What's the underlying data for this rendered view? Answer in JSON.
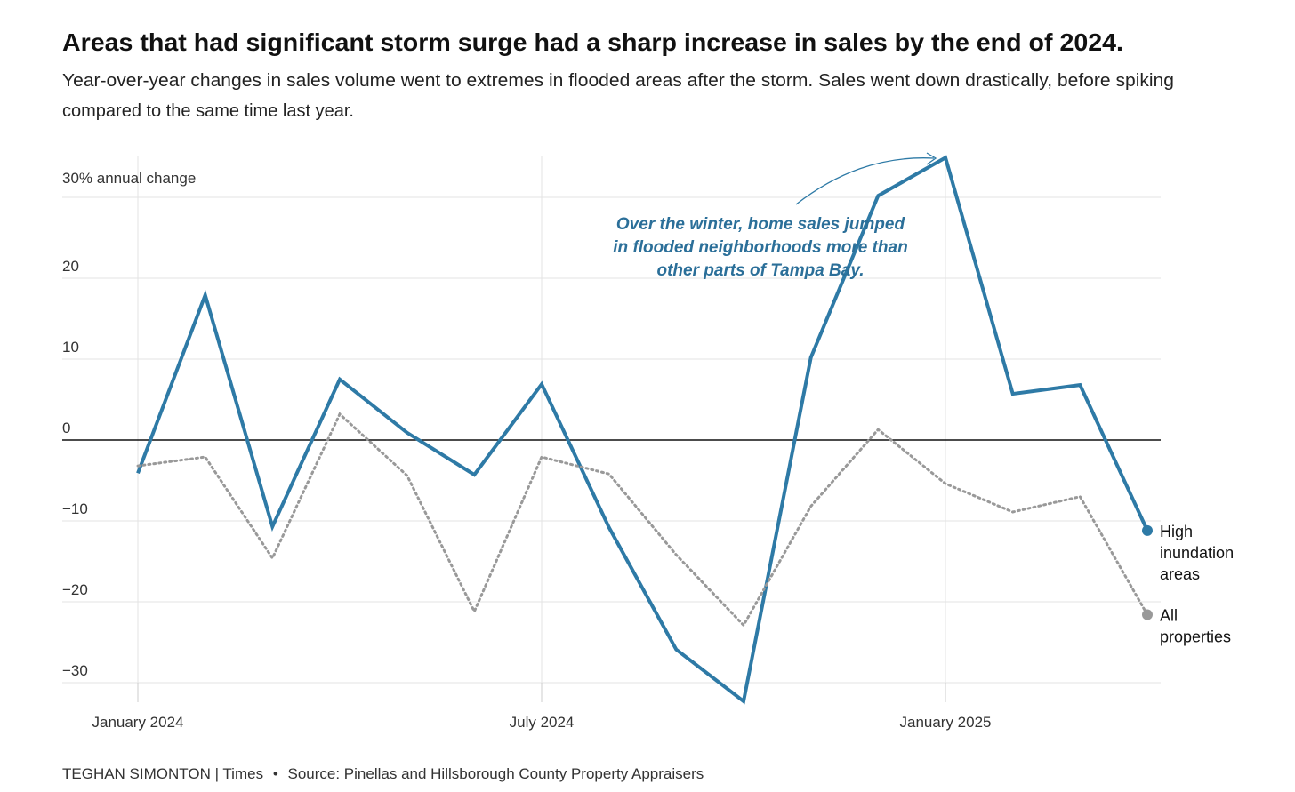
{
  "header": {
    "title": "Areas that had significant storm surge had a sharp increase in sales by the end of 2024.",
    "subtitle_line1": "Year-over-year changes in sales volume went to extremes in flooded areas after the storm. Sales went down drastically, before spiking",
    "subtitle_line2": "compared to the same time last year."
  },
  "footer": {
    "credit": "TEGHAN SIMONTON | Times",
    "separator": "•",
    "source": "Source: Pinellas and Hillsborough County Property Appraisers"
  },
  "chart_data": {
    "type": "line",
    "ylabel": "30% annual change",
    "ylim": [
      -35,
      35
    ],
    "yticks": [
      {
        "value": 30,
        "label": "30% annual change"
      },
      {
        "value": 20,
        "label": "20"
      },
      {
        "value": 10,
        "label": "10"
      },
      {
        "value": 0,
        "label": "0"
      },
      {
        "value": -10,
        "label": "−10"
      },
      {
        "value": -20,
        "label": "−20"
      },
      {
        "value": -30,
        "label": "−30"
      }
    ],
    "xticks": [
      {
        "index": 0,
        "label": "January 2024"
      },
      {
        "index": 6,
        "label": "July 2024"
      },
      {
        "index": 12,
        "label": "January 2025"
      }
    ],
    "x": [
      "2024-01",
      "2024-02",
      "2024-03",
      "2024-04",
      "2024-05",
      "2024-06",
      "2024-07",
      "2024-08",
      "2024-09",
      "2024-10",
      "2024-11",
      "2024-12",
      "2025-01",
      "2025-02",
      "2025-03",
      "2025-04"
    ],
    "grid": true,
    "series": [
      {
        "name": "High inundation areas",
        "label_lines": [
          "High",
          "inundation",
          "areas"
        ],
        "color": "#2e7aa6",
        "style": "solid",
        "values": [
          -4.1,
          17.9,
          -10.7,
          7.5,
          0.9,
          -4.3,
          6.9,
          -10.8,
          -25.9,
          -32.3,
          10.2,
          30.2,
          34.9,
          5.7,
          6.8,
          -11.2
        ]
      },
      {
        "name": "All properties",
        "label_lines": [
          "All",
          "properties"
        ],
        "color": "#999999",
        "style": "dotted",
        "values": [
          -3.2,
          -2.1,
          -14.6,
          3.2,
          -4.4,
          -21.2,
          -2.1,
          -4.2,
          -14.2,
          -22.9,
          -8.2,
          1.3,
          -5.4,
          -8.9,
          -7.0,
          -21.6
        ]
      }
    ],
    "annotation": {
      "lines": [
        "Over the winter, home sales jumped",
        "in flooded neighborhoods more than",
        "other parts of Tampa Bay."
      ],
      "points_to_index": 12
    }
  }
}
